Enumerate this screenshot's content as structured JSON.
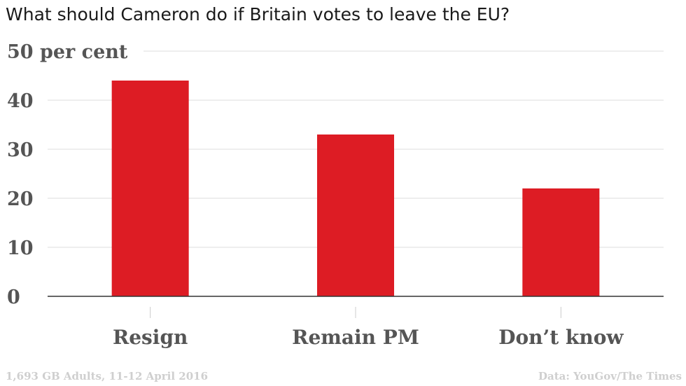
{
  "chart_data": {
    "type": "bar",
    "title": "What should Cameron do if Britain votes to leave the EU?",
    "categories": [
      "Resign",
      "Remain PM",
      "Don’t know"
    ],
    "values": [
      44,
      33,
      22
    ],
    "ylim": [
      0,
      50
    ],
    "yticks": [
      0,
      10,
      20,
      30,
      40,
      50
    ],
    "ytick_labels": [
      "0",
      "10",
      "20",
      "30",
      "40",
      "50 per cent"
    ],
    "grid": true,
    "bar_color": "#dd1c24",
    "note": "1,693 GB Adults, 11-12 April 2016",
    "source": "Data: YouGov/The Times"
  }
}
